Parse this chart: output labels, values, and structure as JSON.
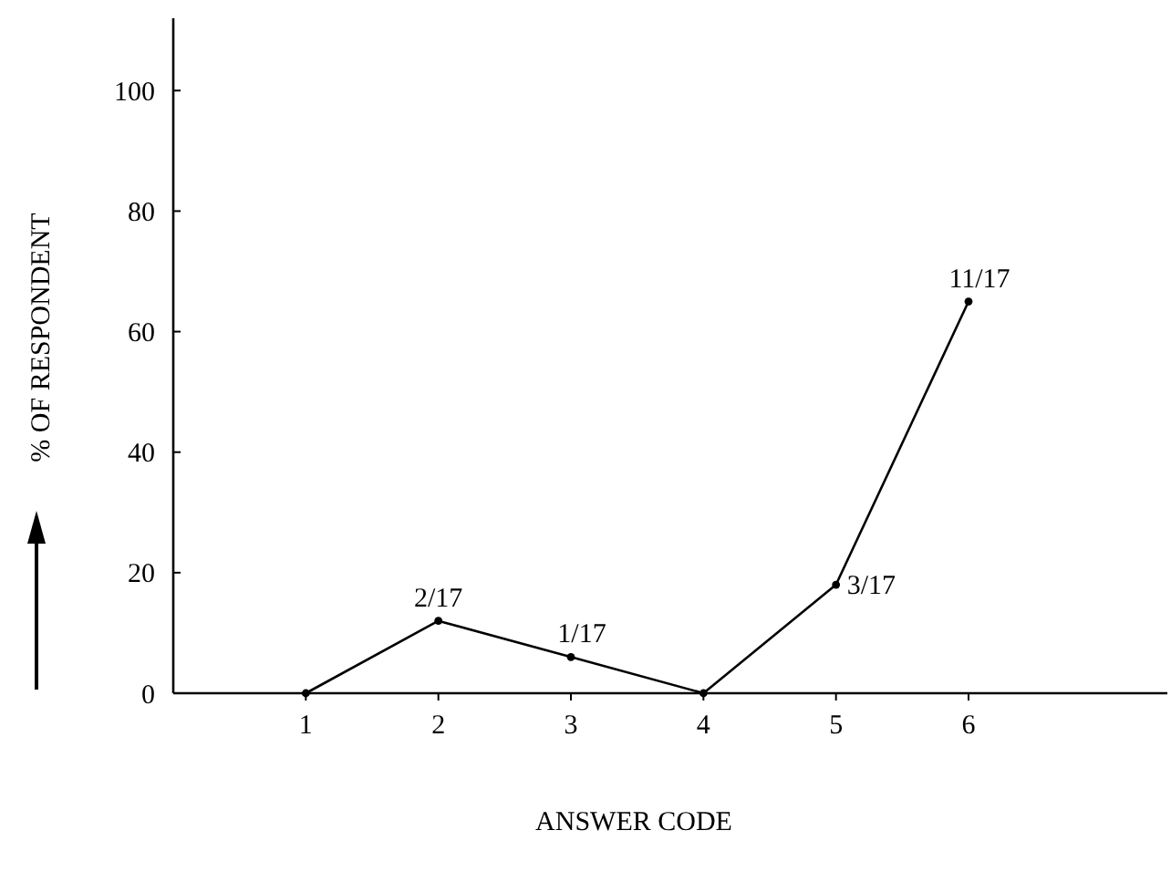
{
  "chart_data": {
    "type": "line",
    "xlabel": "ANSWER CODE",
    "ylabel": "% OF RESPONDENT",
    "x": [
      1,
      2,
      3,
      4,
      5,
      6
    ],
    "values": [
      0,
      12,
      6,
      0,
      18,
      65
    ],
    "value_labels": [
      null,
      "2/17",
      "1/17",
      null,
      "3/17",
      "11/17"
    ],
    "color": "#000000",
    "marker": "circle",
    "xlim": [
      0,
      7.5
    ],
    "xticks": [
      1,
      2,
      3,
      4,
      5,
      6
    ],
    "ylim": [
      0,
      112
    ],
    "yticks": [
      0,
      20,
      40,
      60,
      80,
      100
    ],
    "grid": false
  }
}
